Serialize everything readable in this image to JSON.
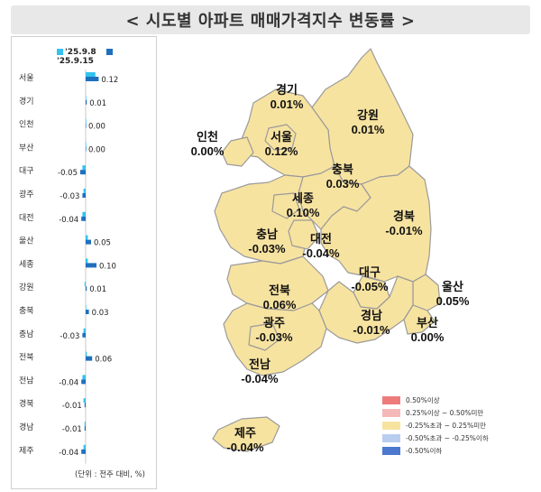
{
  "title": "< 시도별 아파트 매매가격지수 변동률 >",
  "unit_note": "(단위 : 전주 대비, %)",
  "colors": {
    "prev_week": "#33c3ef",
    "this_week": "#1f6fbf",
    "map_fill": "#f7e3a0",
    "map_stroke": "#9a9a9a"
  },
  "chart_data": {
    "type": "bar",
    "orientation": "horizontal",
    "series": [
      {
        "name": "'25.9.8",
        "values": [
          null,
          null,
          null,
          null,
          null,
          null,
          null,
          null,
          null,
          null,
          null,
          null,
          null,
          null,
          null,
          null,
          null
        ]
      },
      {
        "name": "'25.9.15",
        "values": [
          0.12,
          0.01,
          0.0,
          0.0,
          -0.05,
          -0.03,
          -0.04,
          0.05,
          0.1,
          0.01,
          0.03,
          -0.03,
          0.06,
          -0.04,
          -0.01,
          -0.01,
          -0.04
        ]
      }
    ],
    "categories": [
      "서울",
      "경기",
      "인천",
      "부산",
      "대구",
      "광주",
      "대전",
      "울산",
      "세종",
      "강원",
      "충북",
      "충남",
      "전북",
      "전남",
      "경북",
      "경남",
      "제주"
    ],
    "value_labels": [
      "0.12",
      "0.01",
      "0.00",
      "0.00",
      "-0.05",
      "-0.03",
      "-0.04",
      "0.05",
      "0.10",
      "0.01",
      "0.03",
      "-0.03",
      "0.06",
      "-0.04",
      "-0.01",
      "-0.01",
      "-0.04"
    ],
    "prev_values_estimated": [
      0.09,
      0.0,
      0.0,
      0.0,
      -0.03,
      -0.02,
      -0.03,
      0.02,
      0.02,
      -0.01,
      0.0,
      -0.02,
      0.01,
      -0.03,
      -0.02,
      -0.01,
      -0.02
    ]
  },
  "map": {
    "regions": [
      {
        "name": "경기",
        "value": "0.01%"
      },
      {
        "name": "강원",
        "value": "0.01%"
      },
      {
        "name": "인천",
        "value": "0.00%"
      },
      {
        "name": "서울",
        "value": "0.12%"
      },
      {
        "name": "충북",
        "value": "0.03%"
      },
      {
        "name": "세종",
        "value": "0.10%"
      },
      {
        "name": "경북",
        "value": "-0.01%"
      },
      {
        "name": "충남",
        "value": "-0.03%"
      },
      {
        "name": "대전",
        "value": "-0.04%"
      },
      {
        "name": "전북",
        "value": "0.06%"
      },
      {
        "name": "대구",
        "value": "-0.05%"
      },
      {
        "name": "울산",
        "value": "0.05%"
      },
      {
        "name": "광주",
        "value": "-0.03%"
      },
      {
        "name": "경남",
        "value": "-0.01%"
      },
      {
        "name": "부산",
        "value": "0.00%"
      },
      {
        "name": "전남",
        "value": "-0.04%"
      },
      {
        "name": "제주",
        "value": "-0.04%"
      }
    ]
  },
  "map_legend": [
    {
      "label": "0.50%이상",
      "color": "#ee7b7b"
    },
    {
      "label": "0.25%이상 ~ 0.50%미만",
      "color": "#f5b8b8"
    },
    {
      "label": "-0.25%초과 ~ 0.25%미만",
      "color": "#f7e3a0"
    },
    {
      "label": "-0.50%초과 ~ -0.25%이하",
      "color": "#b9cdef"
    },
    {
      "label": "-0.50%이하",
      "color": "#4d78cf"
    }
  ]
}
